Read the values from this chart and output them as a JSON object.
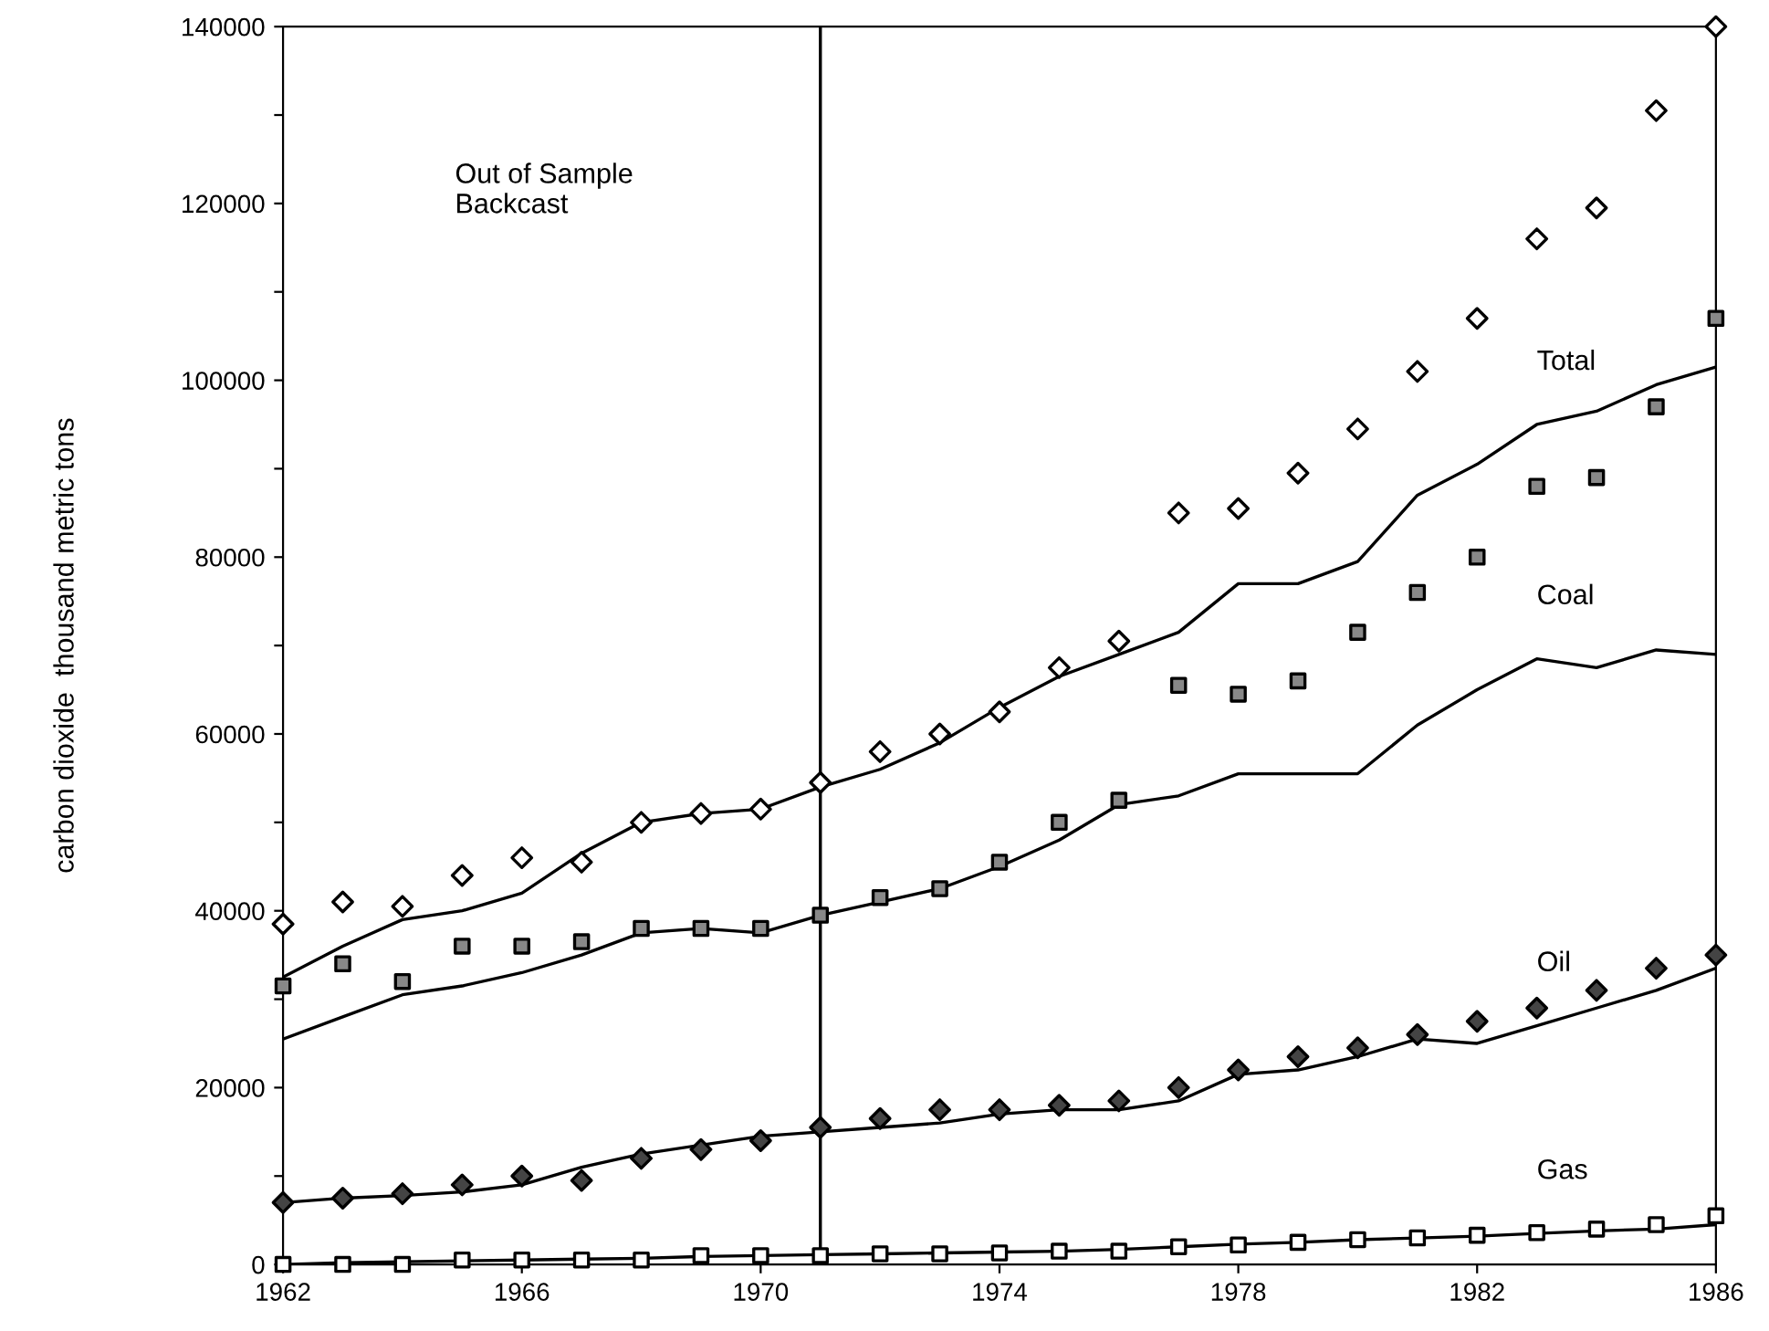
{
  "chart_data": {
    "type": "scatter",
    "ylabel": "carbon dioxide  thousand metric tons",
    "x": [
      1962,
      1963,
      1964,
      1965,
      1966,
      1967,
      1968,
      1969,
      1970,
      1971,
      1972,
      1973,
      1974,
      1975,
      1976,
      1977,
      1978,
      1979,
      1980,
      1981,
      1982,
      1983,
      1984,
      1985,
      1986
    ],
    "series": [
      {
        "name": "Total",
        "marker": "diamond",
        "color": "#ffffff",
        "values": [
          38500,
          41000,
          40500,
          44000,
          46000,
          45500,
          50000,
          51000,
          51500,
          54500,
          58000,
          60000,
          62500,
          67500,
          70500,
          85000,
          85500,
          89500,
          94500,
          101000,
          107000,
          116000,
          119500,
          130500,
          140000
        ]
      },
      {
        "type": "line",
        "color": "#000000",
        "values": [
          32500,
          36000,
          39000,
          40000,
          42000,
          46500,
          50000,
          51000,
          51500,
          54000,
          56000,
          59000,
          63000,
          66500,
          69000,
          71500,
          77000,
          77000,
          79500,
          87000,
          90500,
          95000,
          96500,
          99500,
          101500
        ]
      },
      {
        "name": "Coal",
        "marker": "square",
        "color": "#888888",
        "values": [
          31500,
          34000,
          32000,
          36000,
          36000,
          36500,
          38000,
          38000,
          38000,
          39500,
          41500,
          42500,
          45500,
          50000,
          52500,
          65500,
          64500,
          66000,
          71500,
          76000,
          80000,
          88000,
          89000,
          97000,
          107000
        ]
      },
      {
        "type": "line",
        "color": "#000000",
        "values": [
          25500,
          28000,
          30500,
          31500,
          33000,
          35000,
          37500,
          38000,
          37500,
          39500,
          41000,
          42500,
          45000,
          48000,
          52000,
          53000,
          55500,
          55500,
          55500,
          61000,
          65000,
          68500,
          67500,
          69500,
          69000
        ]
      },
      {
        "name": "Oil",
        "marker": "diamond",
        "color": "#444444",
        "values": [
          7000,
          7500,
          8000,
          9000,
          10000,
          9500,
          12000,
          13000,
          14000,
          15500,
          16500,
          17500,
          17500,
          18000,
          18500,
          20000,
          22000,
          23500,
          24500,
          26000,
          27500,
          29000,
          31000,
          33500,
          35000
        ]
      },
      {
        "type": "line",
        "color": "#000000",
        "values": [
          7000,
          7500,
          7800,
          8200,
          9000,
          11000,
          12500,
          13500,
          14500,
          15000,
          15500,
          16000,
          17000,
          17500,
          17500,
          18500,
          21500,
          22000,
          23500,
          25500,
          25000,
          27000,
          29000,
          31000,
          33500
        ]
      },
      {
        "name": "Gas",
        "marker": "square",
        "color": "#ffffff",
        "values": [
          0,
          0,
          0,
          500,
          500,
          500,
          500,
          1000,
          1000,
          1000,
          1200,
          1200,
          1300,
          1500,
          1500,
          2000,
          2200,
          2500,
          2800,
          3000,
          3300,
          3600,
          4000,
          4500,
          5500
        ]
      },
      {
        "type": "line",
        "color": "#000000",
        "values": [
          0,
          200,
          300,
          400,
          500,
          600,
          700,
          900,
          1000,
          1100,
          1200,
          1300,
          1400,
          1500,
          1700,
          2000,
          2300,
          2500,
          2800,
          3000,
          3200,
          3500,
          3800,
          4000,
          4500
        ]
      }
    ],
    "xlim": [
      1962,
      1986
    ],
    "xticks": [
      1962,
      1966,
      1970,
      1974,
      1978,
      1982,
      1986
    ],
    "ylim": [
      0,
      140000
    ],
    "yticks": [
      0,
      {
        "value": 10000,
        "label": null
      },
      20000,
      {
        "value": 30000,
        "label": null
      },
      40000,
      {
        "value": 50000,
        "label": null
      },
      60000,
      {
        "value": 70000,
        "label": null
      },
      80000,
      {
        "value": 90000,
        "label": null
      },
      100000,
      {
        "value": 110000,
        "label": null
      },
      120000,
      {
        "value": 130000,
        "label": null
      },
      140000
    ],
    "ref_lines": [
      {
        "axis": "x",
        "value": 1971,
        "color": "#000000"
      }
    ],
    "annotations": [
      "Out of Sample\nBackcast"
    ],
    "grid": false,
    "legend": false
  }
}
